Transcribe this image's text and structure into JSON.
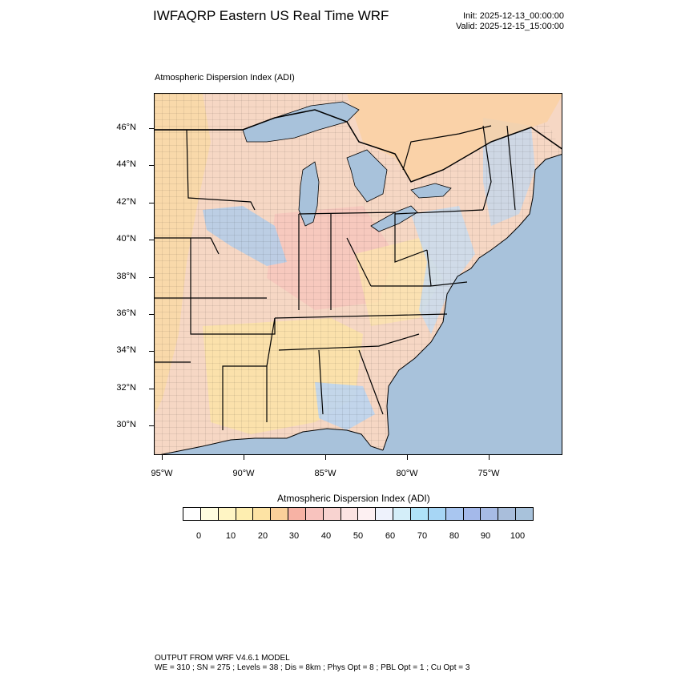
{
  "header": {
    "title": "IWFAQRP Eastern US Real Time WRF",
    "init": "Init: 2025-12-13_00:00:00",
    "valid": "Valid: 2025-12-15_15:00:00"
  },
  "map": {
    "subtitle": "Atmospheric Dispersion Index   (ADI)",
    "lat_labels": [
      "46°N",
      "44°N",
      "42°N",
      "40°N",
      "38°N",
      "36°N",
      "34°N",
      "32°N",
      "30°N"
    ],
    "lon_labels": [
      "95°W",
      "90°W",
      "85°W",
      "80°W",
      "75°W"
    ],
    "colors": {
      "water": "#a8c2db",
      "land_high": "#f6c99a",
      "land_mid": "#f7d9d6",
      "land_low": "#b8cfe6",
      "border": "#000000"
    }
  },
  "colorbar": {
    "title": "Atmospheric Dispersion Index  (ADI)",
    "labels": [
      "0",
      "10",
      "20",
      "30",
      "40",
      "50",
      "60",
      "70",
      "80",
      "90",
      "100"
    ],
    "colors": [
      "#ffffff",
      "#fffde0",
      "#fff5c4",
      "#feeeb0",
      "#fde3a4",
      "#fbd09a",
      "#f7b2a4",
      "#f8c3be",
      "#f8d3d0",
      "#fbe3e2",
      "#fdf0f2",
      "#eef2fc",
      "#d4eef9",
      "#afe3f8",
      "#a7d6f5",
      "#a9c6f0",
      "#a4b9ea",
      "#a7bbe5",
      "#a9bedb",
      "#a8c2db"
    ]
  },
  "footer": {
    "line1": "OUTPUT FROM WRF V4.6.1 MODEL",
    "line2": "WE = 310 ; SN = 275 ; Levels = 38 ; Dis = 8km ; Phys Opt = 8 ; PBL Opt = 1 ; Cu Opt = 3"
  }
}
